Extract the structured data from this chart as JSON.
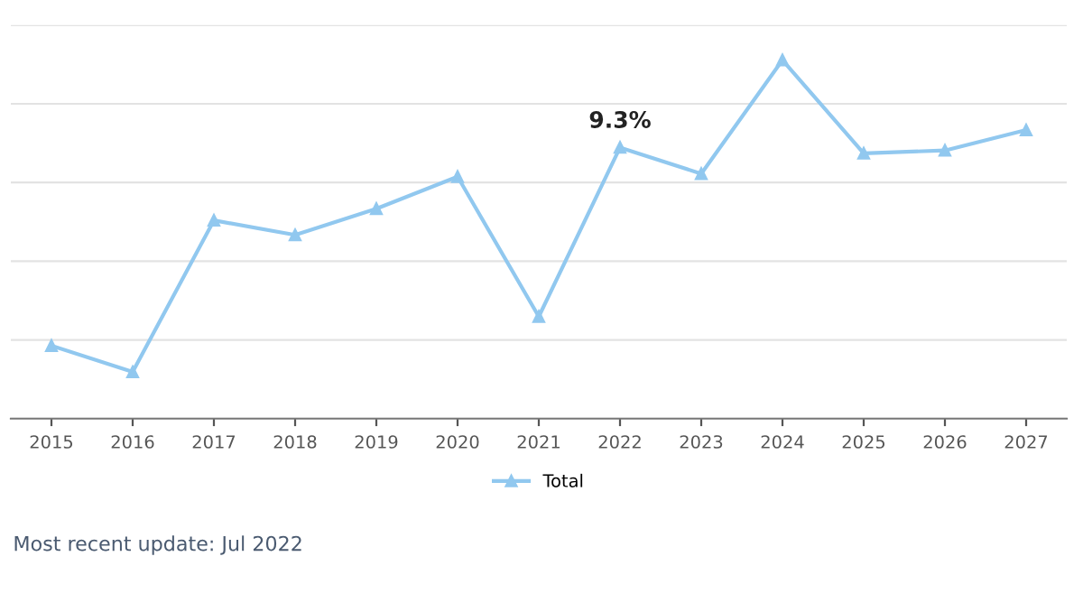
{
  "chart_data": {
    "type": "line",
    "categories": [
      "2015",
      "2016",
      "2017",
      "2018",
      "2019",
      "2020",
      "2021",
      "2022",
      "2023",
      "2024",
      "2025",
      "2026",
      "2027"
    ],
    "series": [
      {
        "name": "Total",
        "color": "#91c8ef",
        "values": [
          2.5,
          1.6,
          6.8,
          6.3,
          7.2,
          8.3,
          3.5,
          9.3,
          8.4,
          12.3,
          9.1,
          9.2,
          9.9
        ],
        "value_labels": [
          null,
          null,
          null,
          null,
          null,
          null,
          null,
          "9.3%",
          null,
          null,
          null,
          null,
          null
        ]
      }
    ],
    "ylim": [
      0,
      13.5
    ],
    "yticks": [
      {
        "value": 0,
        "label": null
      },
      {
        "value": 2.7,
        "label": null
      },
      {
        "value": 5.4,
        "label": null
      },
      {
        "value": 8.1,
        "label": null
      },
      {
        "value": 10.8,
        "label": null
      },
      {
        "value": 13.5,
        "label": null
      }
    ],
    "tick_labels": "x",
    "marker": "triangle",
    "grid": "y",
    "legend": "bottom",
    "annotations": [
      "Most recent update: Jul 2022"
    ]
  }
}
